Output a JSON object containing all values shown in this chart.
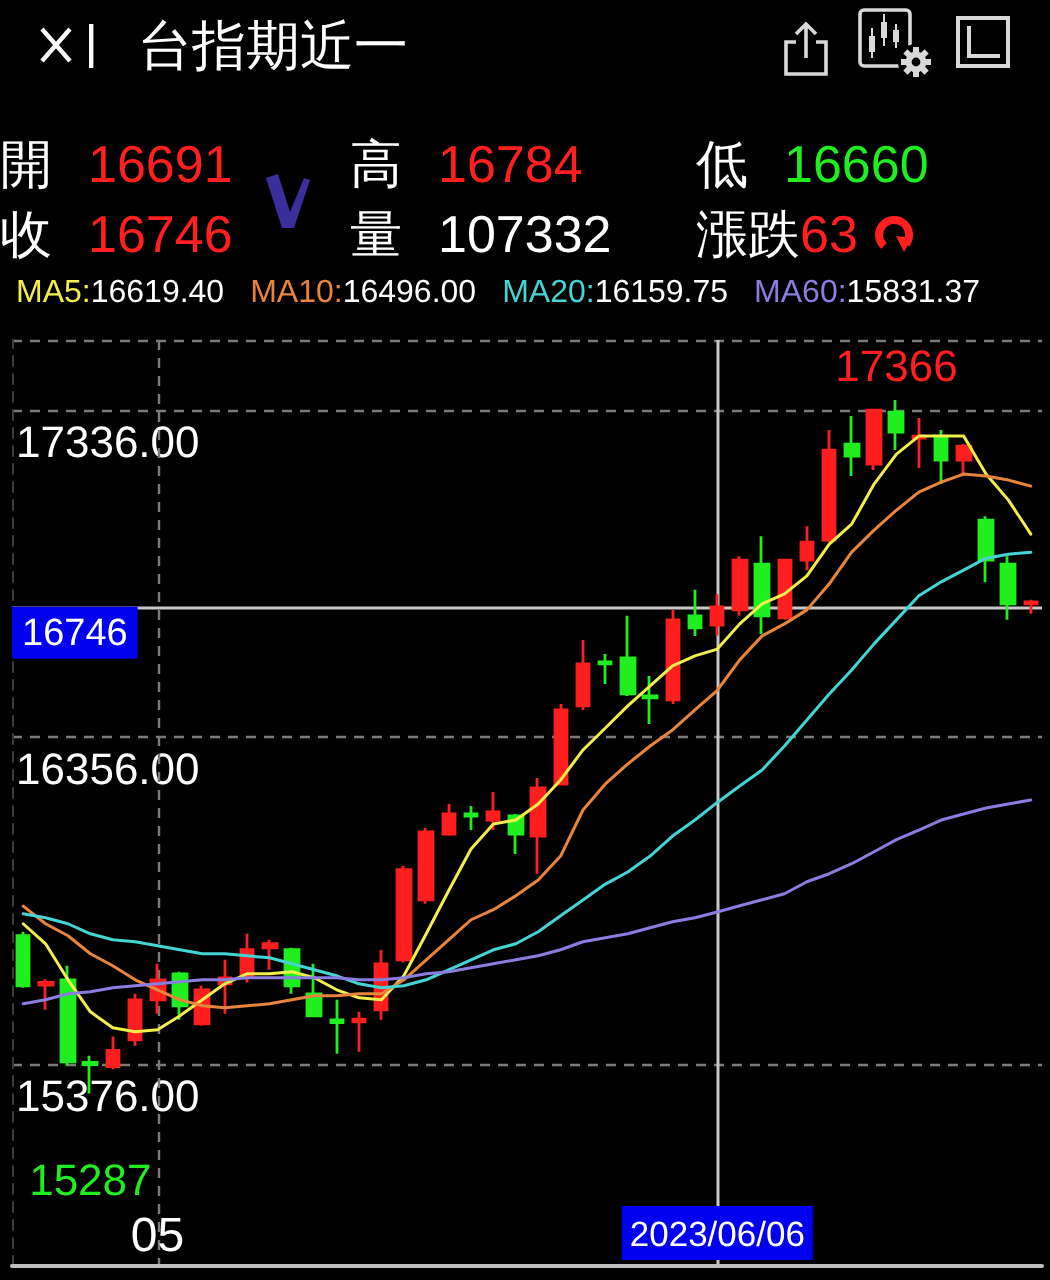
{
  "chart_data": {
    "type": "candlestick",
    "title": "台指期近一",
    "categories": [
      null,
      null,
      null,
      null,
      null,
      null,
      "05",
      null,
      null,
      null,
      null,
      null,
      null,
      null,
      null,
      null,
      null,
      null,
      null,
      null,
      null,
      null,
      null,
      null,
      null,
      null,
      null,
      null,
      null,
      null,
      null,
      "2023/06/06",
      null,
      null,
      null,
      null,
      null,
      null,
      null,
      null,
      null,
      null,
      null,
      null,
      null,
      null
    ],
    "ohlc": [
      [
        15760,
        15772,
        15604,
        15610
      ],
      [
        15612,
        15630,
        15538,
        15620
      ],
      [
        15628,
        15670,
        15370,
        15382
      ],
      [
        15380,
        15400,
        15287,
        15374
      ],
      [
        15368,
        15458,
        15360,
        15416
      ],
      [
        15448,
        15586,
        15430,
        15568
      ],
      [
        15568,
        15676,
        15526,
        15628
      ],
      [
        15646,
        15652,
        15508,
        15550
      ],
      [
        15496,
        15610,
        15490,
        15598
      ],
      [
        15616,
        15688,
        15526,
        15634
      ],
      [
        15640,
        15766,
        15620,
        15718
      ],
      [
        15724,
        15748,
        15658,
        15736
      ],
      [
        15718,
        15724,
        15586,
        15610
      ],
      [
        15586,
        15676,
        15520,
        15520
      ],
      [
        15508,
        15568,
        15406,
        15500
      ],
      [
        15502,
        15532,
        15412,
        15510
      ],
      [
        15538,
        15718,
        15508,
        15676
      ],
      [
        15688,
        15970,
        15680,
        15958
      ],
      [
        15868,
        16083,
        15856,
        16071
      ],
      [
        16065,
        16155,
        16060,
        16125
      ],
      [
        16125,
        16149,
        16077,
        16119
      ],
      [
        16107,
        16191,
        16077,
        16131
      ],
      [
        16119,
        16125,
        16005,
        16065
      ],
      [
        16059,
        16233,
        15946,
        16203
      ],
      [
        16215,
        16455,
        16215,
        16437
      ],
      [
        16449,
        16647,
        16437,
        16575
      ],
      [
        16581,
        16605,
        16515,
        16575
      ],
      [
        16593,
        16719,
        16479,
        16485
      ],
      [
        16479,
        16539,
        16395,
        16473
      ],
      [
        16467,
        16737,
        16455,
        16707
      ],
      [
        16719,
        16797,
        16659,
        16683
      ],
      [
        16691,
        16784,
        16660,
        16746
      ],
      [
        16737,
        16898,
        16719,
        16886
      ],
      [
        16874,
        16958,
        16665,
        16719
      ],
      [
        16713,
        16886,
        16707,
        16886
      ],
      [
        16886,
        16988,
        16856,
        16940
      ],
      [
        16946,
        17276,
        16940,
        17216
      ],
      [
        17234,
        17318,
        17138,
        17198
      ],
      [
        17174,
        17340,
        17156,
        17336
      ],
      [
        17330,
        17366,
        17216,
        17270
      ],
      [
        17252,
        17312,
        17162,
        17258
      ],
      [
        17258,
        17276,
        17114,
        17186
      ],
      [
        17186,
        17234,
        17138,
        17228
      ],
      [
        17006,
        17018,
        16820,
        16886
      ],
      [
        16874,
        16898,
        16707,
        16755
      ],
      [
        16755,
        16767,
        16725,
        16761
      ]
    ],
    "colors": [
      "#1fef1f",
      "#ff1f1f",
      "#1fef1f",
      "#1fef1f",
      "#ff1f1f",
      "#ff1f1f",
      "#ff1f1f",
      "#1fef1f",
      "#ff1f1f",
      "#ff1f1f",
      "#ff1f1f",
      "#ff1f1f",
      "#1fef1f",
      "#1fef1f",
      "#1fef1f",
      "#ff1f1f",
      "#ff1f1f",
      "#ff1f1f",
      "#ff1f1f",
      "#ff1f1f",
      "#1fef1f",
      "#ff1f1f",
      "#1fef1f",
      "#ff1f1f",
      "#ff1f1f",
      "#ff1f1f",
      "#1fef1f",
      "#1fef1f",
      "#1fef1f",
      "#ff1f1f",
      "#1fef1f",
      "#ff1f1f",
      "#ff1f1f",
      "#1fef1f",
      "#ff1f1f",
      "#ff1f1f",
      "#ff1f1f",
      "#1fef1f",
      "#ff1f1f",
      "#1fef1f",
      "#ff1f1f",
      "#1fef1f",
      "#ff1f1f",
      "#1fef1f",
      "#1fef1f",
      "#ff1f1f"
    ],
    "series": [
      {
        "name": "MA5:16619.40",
        "type": "line",
        "color": "#f2ee4b",
        "values": [
          15796,
          15736,
          15628,
          15532,
          15484,
          15472,
          15478,
          15520,
          15568,
          15616,
          15646,
          15646,
          15652,
          15634,
          15598,
          15574,
          15568,
          15640,
          15766,
          15895,
          16020,
          16095,
          16107,
          16155,
          16227,
          16317,
          16383,
          16449,
          16509,
          16569,
          16599,
          16619.4,
          16695,
          16755,
          16785,
          16839,
          16934,
          16994,
          17114,
          17204,
          17258,
          17258,
          17258,
          17144,
          17066,
          16964
        ]
      },
      {
        "name": "MA10:16496.00",
        "type": "line",
        "color": "#e9853a",
        "values": [
          15849,
          15796,
          15760,
          15706,
          15670,
          15628,
          15598,
          15568,
          15550,
          15544,
          15550,
          15556,
          15568,
          15580,
          15580,
          15586,
          15586,
          15628,
          15688,
          15748,
          15808,
          15838,
          15880,
          15927,
          15999,
          16137,
          16215,
          16275,
          16329,
          16377,
          16437,
          16496,
          16587,
          16659,
          16695,
          16737,
          16815,
          16910,
          16976,
          17036,
          17090,
          17120,
          17144,
          17138,
          17126,
          17108
        ]
      },
      {
        "name": "MA20:16159.75",
        "type": "line",
        "color": "#45d4d4",
        "values": [
          15826,
          15814,
          15796,
          15766,
          15748,
          15742,
          15730,
          15718,
          15706,
          15706,
          15700,
          15694,
          15676,
          15658,
          15640,
          15616,
          15604,
          15610,
          15628,
          15658,
          15688,
          15718,
          15736,
          15772,
          15820,
          15867,
          15915,
          15951,
          15999,
          16059,
          16107,
          16159.75,
          16209,
          16257,
          16329,
          16407,
          16485,
          16557,
          16635,
          16707,
          16779,
          16821,
          16856,
          16892,
          16904,
          16910
        ]
      },
      {
        "name": "MA60:15831.37",
        "type": "line",
        "color": "#8a7de0",
        "values": [
          15556,
          15568,
          15586,
          15592,
          15604,
          15610,
          15616,
          15622,
          15628,
          15628,
          15634,
          15634,
          15634,
          15634,
          15634,
          15628,
          15628,
          15634,
          15646,
          15652,
          15664,
          15676,
          15688,
          15700,
          15718,
          15742,
          15754,
          15766,
          15784,
          15802,
          15814,
          15831.37,
          15850,
          15868,
          15886,
          15922,
          15946,
          15976,
          16012,
          16048,
          16077,
          16107,
          16125,
          16143,
          16155,
          16167
        ]
      }
    ],
    "ylim": [
      14770,
      17546
    ],
    "yticks": [
      {
        "value": 15376,
        "label": "15376.00"
      },
      {
        "value": 16356,
        "label": "16356.00"
      },
      {
        "value": 17336,
        "label": "17336.00"
      }
    ],
    "grid": true,
    "legend": "top left",
    "ref_lines": [
      {
        "axis": "x",
        "value": "2023/06/06",
        "color": "#c8c8c8"
      },
      {
        "axis": "y",
        "value": 16746,
        "label": "16746",
        "color": "#c8c8c8"
      }
    ],
    "annotations": [
      "開 16691",
      "高 16784",
      "低 16660",
      "收 16746",
      "量 107332",
      "漲跌63",
      "17366",
      "15287"
    ]
  }
}
